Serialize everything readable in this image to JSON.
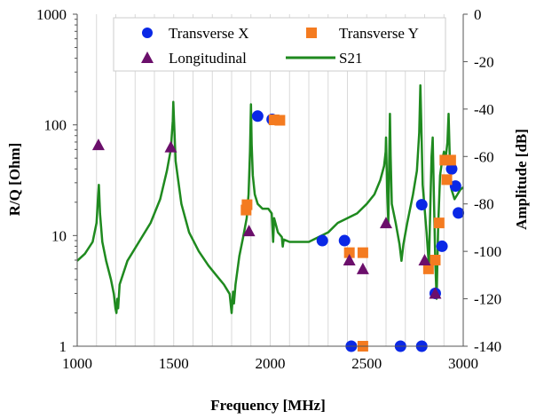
{
  "chart_data": {
    "type": "scatter",
    "title": "",
    "xlabel": "Frequency [MHz]",
    "ylabel_left": "R/Q [Ohm]",
    "ylabel_right": "Amplitude [dB]",
    "xlim": [
      1000,
      3000
    ],
    "ylim_left": [
      1,
      1000
    ],
    "ylim_right": [
      -140,
      0
    ],
    "yscale_left": "log",
    "x_ticks": [
      1000,
      1500,
      2000,
      2500,
      3000
    ],
    "x_tick_labels": [
      "1000",
      "1500",
      "2000",
      "2500",
      "3000"
    ],
    "y_left_ticks": [
      1,
      10,
      100,
      1000
    ],
    "y_left_tick_labels": [
      "1",
      "10",
      "100",
      "1000"
    ],
    "y_right_ticks": [
      0,
      -20,
      -40,
      -60,
      -80,
      -100,
      -120,
      -140
    ],
    "y_right_tick_labels": [
      "0",
      "-20",
      "-40",
      "-60",
      "-80",
      "-100",
      "-120",
      "-140"
    ],
    "grid": {
      "vertical": true,
      "horizontal": false
    },
    "legend_position": "top",
    "series": [
      {
        "name": "Transverse X",
        "marker": "circle",
        "color": "#0a28e6",
        "axis": "left",
        "points": [
          [
            1935,
            120
          ],
          [
            2010,
            112
          ],
          [
            2270,
            9
          ],
          [
            2385,
            9
          ],
          [
            2420,
            1
          ],
          [
            2675,
            1
          ],
          [
            2785,
            19
          ],
          [
            2785,
            1
          ],
          [
            2855,
            3
          ],
          [
            2890,
            8
          ],
          [
            2940,
            40
          ],
          [
            2960,
            28
          ],
          [
            2975,
            16
          ]
        ]
      },
      {
        "name": "Transverse Y",
        "marker": "square",
        "color": "#f47b20",
        "axis": "left",
        "points": [
          [
            1875,
            17
          ],
          [
            1880,
            19
          ],
          [
            2020,
            111
          ],
          [
            2050,
            110
          ],
          [
            2410,
            7
          ],
          [
            2480,
            7
          ],
          [
            2480,
            1
          ],
          [
            2820,
            5
          ],
          [
            2855,
            6
          ],
          [
            2875,
            13
          ],
          [
            2905,
            48
          ],
          [
            2915,
            32
          ],
          [
            2935,
            48
          ]
        ]
      },
      {
        "name": "Longitudinal",
        "marker": "triangle",
        "color": "#6b0f6b",
        "axis": "left",
        "points": [
          [
            1110,
            66
          ],
          [
            1485,
            63
          ],
          [
            1890,
            11
          ],
          [
            2410,
            6
          ],
          [
            2480,
            5
          ],
          [
            2600,
            13
          ],
          [
            2800,
            6
          ],
          [
            2855,
            3
          ]
        ]
      },
      {
        "name": "S21",
        "marker": "line",
        "color": "#1f8a1f",
        "axis": "right",
        "points": [
          [
            1000,
            -104
          ],
          [
            1040,
            -101
          ],
          [
            1080,
            -96
          ],
          [
            1100,
            -88
          ],
          [
            1108,
            -77
          ],
          [
            1112,
            -72
          ],
          [
            1118,
            -84
          ],
          [
            1130,
            -96
          ],
          [
            1150,
            -104
          ],
          [
            1175,
            -112
          ],
          [
            1190,
            -118
          ],
          [
            1198,
            -124
          ],
          [
            1203,
            -126
          ],
          [
            1208,
            -120
          ],
          [
            1212,
            -124
          ],
          [
            1220,
            -114
          ],
          [
            1260,
            -104
          ],
          [
            1320,
            -96
          ],
          [
            1380,
            -88
          ],
          [
            1430,
            -78
          ],
          [
            1465,
            -66
          ],
          [
            1485,
            -57
          ],
          [
            1495,
            -45
          ],
          [
            1498,
            -37
          ],
          [
            1500,
            -42
          ],
          [
            1510,
            -62
          ],
          [
            1540,
            -80
          ],
          [
            1580,
            -92
          ],
          [
            1630,
            -100
          ],
          [
            1680,
            -106
          ],
          [
            1720,
            -110
          ],
          [
            1760,
            -114
          ],
          [
            1790,
            -118
          ],
          [
            1800,
            -126
          ],
          [
            1808,
            -117
          ],
          [
            1812,
            -122
          ],
          [
            1820,
            -114
          ],
          [
            1840,
            -102
          ],
          [
            1860,
            -94
          ],
          [
            1878,
            -86
          ],
          [
            1888,
            -76
          ],
          [
            1895,
            -58
          ],
          [
            1900,
            -38
          ],
          [
            1904,
            -55
          ],
          [
            1910,
            -68
          ],
          [
            1920,
            -76
          ],
          [
            1935,
            -80
          ],
          [
            1960,
            -82
          ],
          [
            1990,
            -82
          ],
          [
            2008,
            -84
          ],
          [
            2015,
            -96
          ],
          [
            2020,
            -86
          ],
          [
            2040,
            -92
          ],
          [
            2060,
            -94
          ],
          [
            2065,
            -98
          ],
          [
            2070,
            -95
          ],
          [
            2100,
            -96
          ],
          [
            2150,
            -96
          ],
          [
            2200,
            -96
          ],
          [
            2250,
            -94
          ],
          [
            2300,
            -92
          ],
          [
            2350,
            -88
          ],
          [
            2400,
            -86
          ],
          [
            2450,
            -84
          ],
          [
            2500,
            -80
          ],
          [
            2540,
            -76
          ],
          [
            2570,
            -70
          ],
          [
            2590,
            -64
          ],
          [
            2598,
            -58
          ],
          [
            2600,
            -52
          ],
          [
            2606,
            -75
          ],
          [
            2612,
            -88
          ],
          [
            2616,
            -64
          ],
          [
            2620,
            -42
          ],
          [
            2624,
            -60
          ],
          [
            2630,
            -80
          ],
          [
            2650,
            -88
          ],
          [
            2670,
            -97
          ],
          [
            2680,
            -104
          ],
          [
            2690,
            -97
          ],
          [
            2710,
            -88
          ],
          [
            2740,
            -76
          ],
          [
            2760,
            -66
          ],
          [
            2772,
            -50
          ],
          [
            2778,
            -30
          ],
          [
            2782,
            -44
          ],
          [
            2790,
            -72
          ],
          [
            2810,
            -92
          ],
          [
            2822,
            -106
          ],
          [
            2830,
            -80
          ],
          [
            2836,
            -60
          ],
          [
            2842,
            -52
          ],
          [
            2848,
            -76
          ],
          [
            2855,
            -104
          ],
          [
            2862,
            -120
          ],
          [
            2870,
            -90
          ],
          [
            2880,
            -68
          ],
          [
            2890,
            -62
          ],
          [
            2900,
            -58
          ],
          [
            2910,
            -60
          ],
          [
            2918,
            -54
          ],
          [
            2924,
            -42
          ],
          [
            2930,
            -60
          ],
          [
            2940,
            -74
          ],
          [
            2955,
            -78
          ],
          [
            2970,
            -76
          ],
          [
            2985,
            -74
          ],
          [
            3000,
            -73
          ]
        ]
      }
    ]
  }
}
